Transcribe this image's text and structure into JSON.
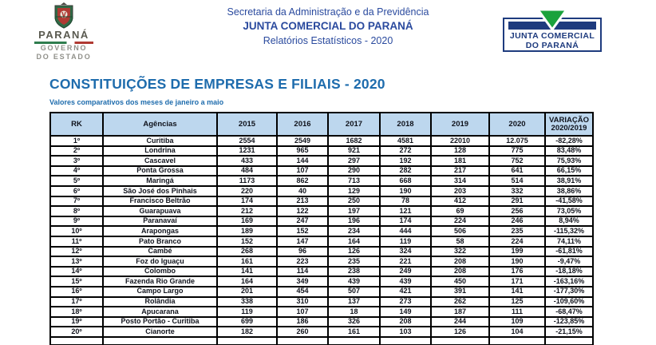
{
  "header": {
    "gov_logo": {
      "state": "PARANÁ",
      "gov_line1": "GOVERNO",
      "gov_line2": "DO ESTADO"
    },
    "center": {
      "line1": "Secretaria da Administração e da Previdência",
      "line2": "JUNTA COMERCIAL DO PARANÁ",
      "line3": "Relatórios Estatísticos - 2020"
    },
    "jucepar_logo": {
      "line1": "JUNTA COMERCIAL",
      "line2": "DO PARANÁ"
    }
  },
  "report": {
    "title": "CONSTITUIÇÕES DE EMPRESAS E FILIAIS - 2020",
    "subtitle": "Valores comparativos dos meses de janeiro a maio"
  },
  "chart_data": {
    "type": "table",
    "columns": [
      "RK",
      "Agências",
      "2015",
      "2016",
      "2017",
      "2018",
      "2019",
      "2020",
      "VARIAÇÃO\n2020/2019"
    ],
    "rows": [
      [
        "1º",
        "Curitiba",
        "2554",
        "2549",
        "1682",
        "4581",
        "22010",
        "12.075",
        "-82,28%"
      ],
      [
        "2º",
        "Londrina",
        "1231",
        "965",
        "921",
        "272",
        "128",
        "775",
        "83,48%"
      ],
      [
        "3º",
        "Cascavel",
        "433",
        "144",
        "297",
        "192",
        "181",
        "752",
        "75,93%"
      ],
      [
        "4º",
        "Ponta Grossa",
        "484",
        "107",
        "290",
        "282",
        "217",
        "641",
        "66,15%"
      ],
      [
        "5º",
        "Maringá",
        "1173",
        "862",
        "713",
        "668",
        "314",
        "514",
        "38,91%"
      ],
      [
        "6º",
        "São José dos Pinhais",
        "220",
        "40",
        "129",
        "190",
        "203",
        "332",
        "38,86%"
      ],
      [
        "7º",
        "Francisco Beltrão",
        "174",
        "213",
        "250",
        "78",
        "412",
        "291",
        "-41,58%"
      ],
      [
        "8º",
        "Guarapuava",
        "212",
        "122",
        "197",
        "121",
        "69",
        "256",
        "73,05%"
      ],
      [
        "9º",
        "Paranavaí",
        "169",
        "247",
        "196",
        "174",
        "224",
        "246",
        "8,94%"
      ],
      [
        "10º",
        "Arapongas",
        "189",
        "152",
        "234",
        "444",
        "506",
        "235",
        "-115,32%"
      ],
      [
        "11º",
        "Pato Branco",
        "152",
        "147",
        "164",
        "119",
        "58",
        "224",
        "74,11%"
      ],
      [
        "12º",
        "Cambé",
        "268",
        "96",
        "126",
        "324",
        "322",
        "199",
        "-61,81%"
      ],
      [
        "13º",
        "Foz do Iguaçu",
        "161",
        "223",
        "235",
        "221",
        "208",
        "190",
        "-9,47%"
      ],
      [
        "14º",
        "Colombo",
        "141",
        "114",
        "238",
        "249",
        "208",
        "176",
        "-18,18%"
      ],
      [
        "15º",
        "Fazenda Rio Grande",
        "164",
        "349",
        "439",
        "439",
        "450",
        "171",
        "-163,16%"
      ],
      [
        "16º",
        "Campo Largo",
        "201",
        "454",
        "507",
        "421",
        "391",
        "141",
        "-177,30%"
      ],
      [
        "17º",
        "Rolândia",
        "338",
        "310",
        "137",
        "273",
        "262",
        "125",
        "-109,60%"
      ],
      [
        "18º",
        "Apucarana",
        "119",
        "107",
        "18",
        "149",
        "187",
        "111",
        "-68,47%"
      ],
      [
        "19º",
        "Posto Portão - Curitiba",
        "699",
        "186",
        "326",
        "208",
        "244",
        "109",
        "-123,85%"
      ],
      [
        "20º",
        "Cianorte",
        "182",
        "260",
        "161",
        "103",
        "126",
        "104",
        "-21,15%"
      ]
    ]
  },
  "colors": {
    "title_blue": "#1e6cad",
    "header_text_blue": "#2a4a9e",
    "table_header_bg": "#bdd7ee",
    "logo_navy": "#1e3b7e",
    "logo_green": "#1aa23c"
  }
}
